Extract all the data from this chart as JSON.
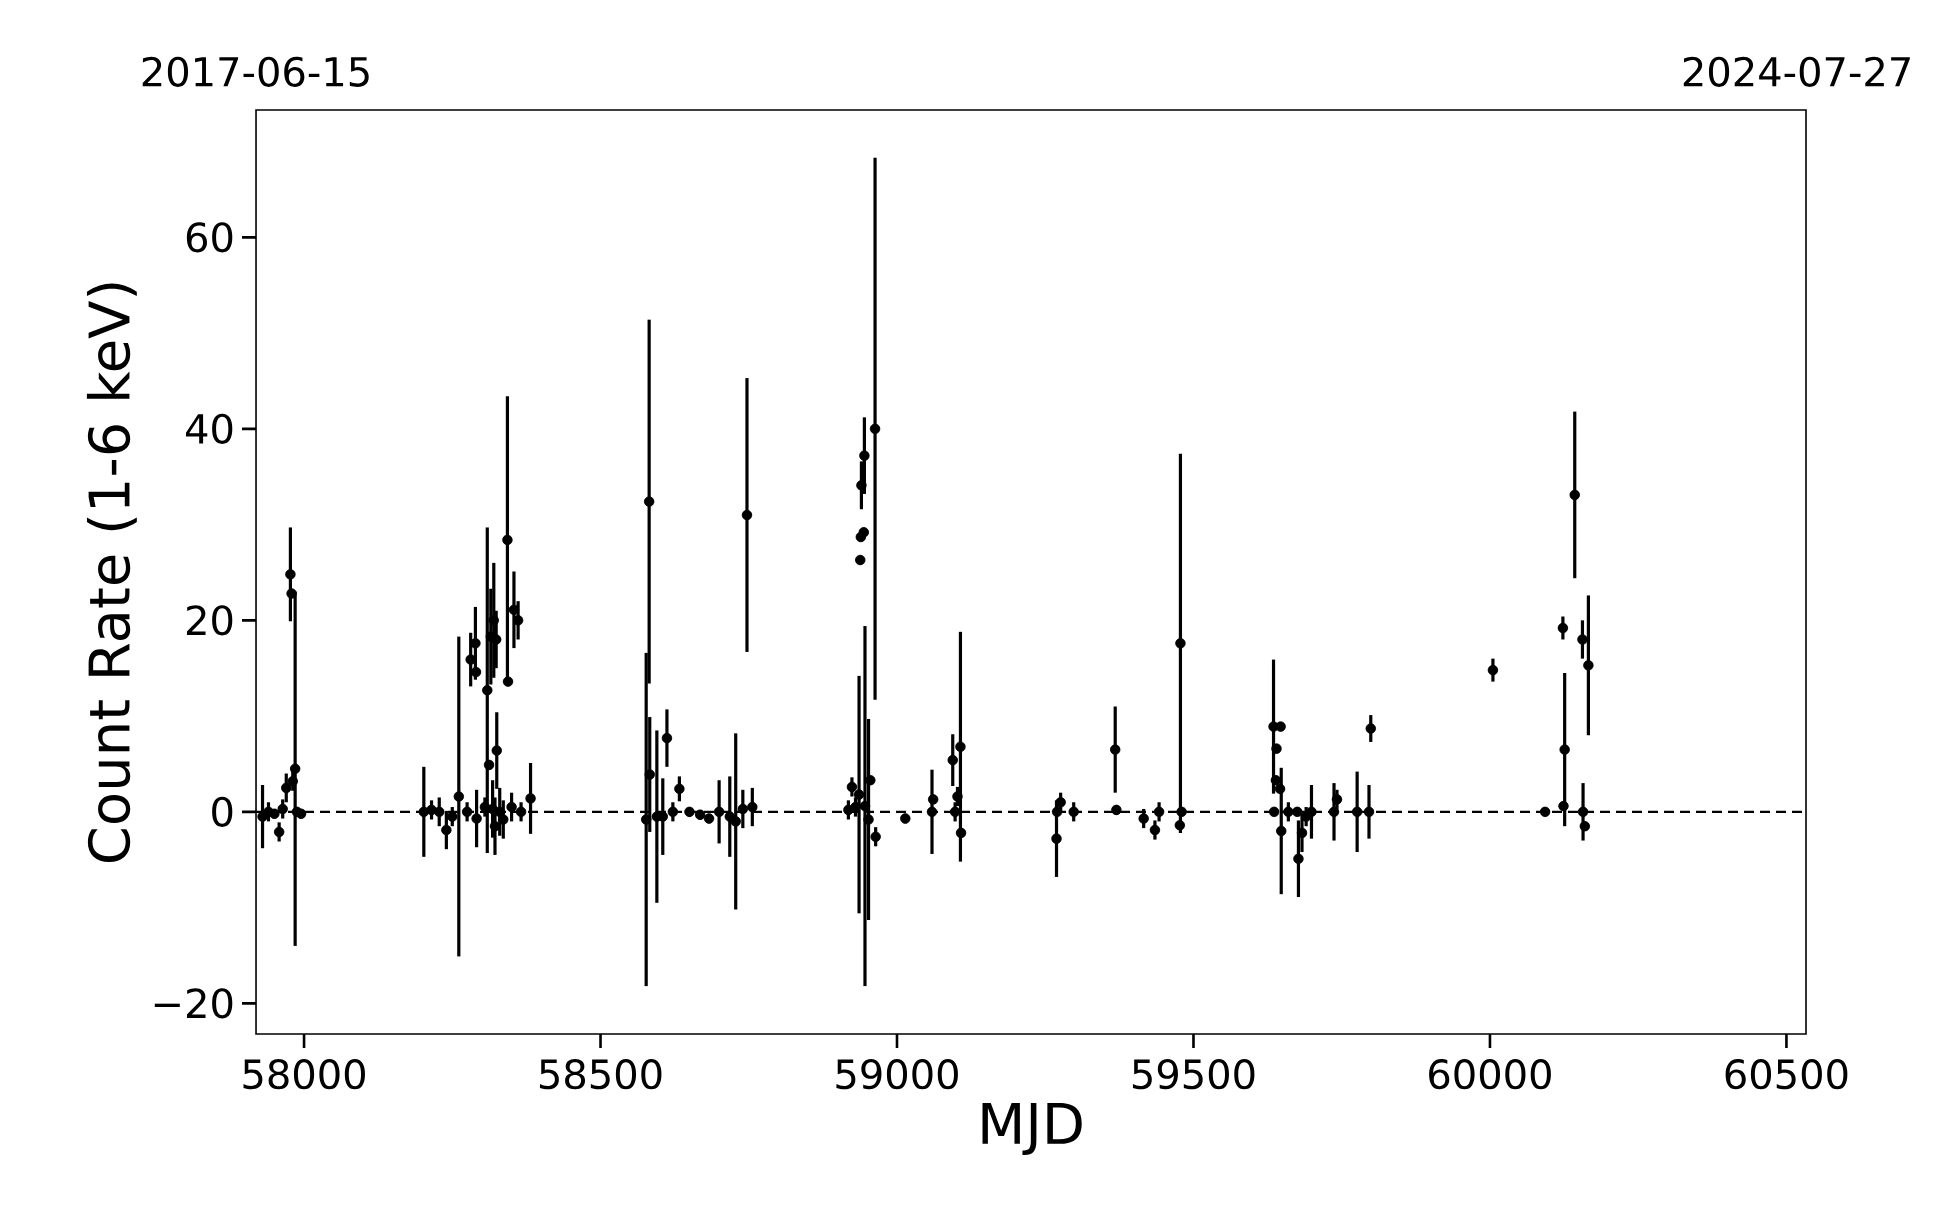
{
  "chart_data": {
    "type": "scatter",
    "xlabel": "MJD",
    "ylabel": "Count Rate (1-6 keV)",
    "xlim": [
      57919,
      60533
    ],
    "xticks": [
      58000,
      58500,
      59000,
      59500,
      60000,
      60500
    ],
    "ylim": [
      -23.2,
      73.3
    ],
    "yticks": [
      {
        "value": -20,
        "label": "−20"
      },
      0,
      20,
      40,
      60
    ],
    "x2lim": [
      "2017-06-15",
      "2024-08-11"
    ],
    "x2ticks": [
      "2017-06-15",
      "2024-07-27"
    ],
    "marker": "circle",
    "ref_lines": [
      {
        "axis": "y",
        "value": 0,
        "line_style": "dashed",
        "color": "#000000"
      }
    ],
    "series": [
      {
        "color": "#000000",
        "x": [
          57930,
          57940,
          57950,
          57958,
          57964,
          57970,
          57977,
          57979,
          57981,
          57985,
          57988,
          57995,
          58202,
          58215,
          58228,
          58240,
          58250,
          58261,
          58275,
          58281,
          58289,
          58290,
          58291,
          58305,
          58309,
          58312,
          58315,
          58318,
          58320,
          58322,
          58324,
          58325,
          58330,
          58336,
          58343,
          58344,
          58350,
          58354,
          58361,
          58366,
          58382,
          58577,
          58582,
          58583,
          58595,
          58605,
          58612,
          58622,
          58633,
          58650,
          58668,
          58683,
          58700,
          58718,
          58728,
          58740,
          58747,
          58756,
          58918,
          58924,
          58930,
          58936,
          58938,
          58939,
          58940,
          58944,
          58945,
          58946,
          58952,
          58955,
          58963,
          58964,
          59014,
          59059,
          59061,
          59094,
          59098,
          59102,
          59107,
          59108,
          59269,
          59270,
          59276,
          59298,
          59368,
          59370,
          59416,
          59435,
          59442,
          59477,
          59478,
          59480,
          59635,
          59636,
          59639,
          59640,
          59646,
          59647,
          59648,
          59660,
          59675,
          59677,
          59683,
          59690,
          59699,
          59737,
          59742,
          59776,
          59796,
          59799,
          60005,
          60093,
          60123,
          60124,
          60126,
          60143,
          60156,
          60157,
          60160,
          60166
        ],
        "values": [
          -0.5,
          0,
          -0.2,
          -2.1,
          0.3,
          2.5,
          24.8,
          22.8,
          3.2,
          4.5,
          0,
          -0.2,
          0,
          0.2,
          0,
          -1.9,
          -0.5,
          1.6,
          0,
          15.9,
          17.6,
          14.6,
          -0.7,
          0.5,
          12.7,
          4.9,
          18.3,
          0.3,
          20,
          -1.5,
          18,
          6.4,
          0,
          -0.8,
          28.4,
          13.6,
          0.5,
          21.1,
          20,
          0,
          1.4,
          -0.8,
          32.4,
          3.9,
          -0.5,
          -0.5,
          7.7,
          0,
          2.4,
          0,
          -0.3,
          -0.7,
          0,
          -0.5,
          -1,
          0.3,
          31.0,
          0.5,
          0.2,
          2.6,
          0.5,
          1.8,
          26.3,
          28.7,
          34.1,
          29.2,
          37.2,
          0.6,
          -0.8,
          3.3,
          40.0,
          -2.6,
          -0.7,
          0,
          1.3,
          5.4,
          0,
          1.6,
          6.8,
          -2.2,
          -2.8,
          0,
          1,
          0,
          6.5,
          0.2,
          -0.7,
          -1.9,
          0,
          -1.4,
          17.6,
          0,
          8.9,
          0,
          3.3,
          6.6,
          2.4,
          8.9,
          -2,
          0,
          0,
          -4.9,
          -2.2,
          -0.5,
          0,
          0,
          1.3,
          0,
          0,
          8.7,
          14.8,
          0,
          19.2,
          0.6,
          6.5,
          33.1,
          18,
          0,
          -1.5,
          15.3
        ],
        "errors": [
          3.3,
          1,
          0.5,
          1,
          1,
          1.5,
          4.9,
          null,
          1,
          18.5,
          null,
          0.5,
          4.7,
          1,
          1.5,
          2,
          1,
          16.7,
          1,
          2.8,
          3.8,
          null,
          3,
          1,
          17,
          null,
          5,
          3,
          6,
          3,
          3,
          4,
          2.5,
          2,
          15,
          null,
          1.5,
          4,
          2,
          1,
          3.7,
          17.4,
          19,
          6,
          9,
          4,
          3,
          1,
          1.3,
          0.5,
          0.5,
          0.5,
          3.3,
          4.2,
          9.2,
          2,
          14.3,
          2,
          1,
          1,
          1,
          12.4,
          null,
          null,
          2.5,
          null,
          4,
          18.8,
          10.5,
          null,
          28.3,
          1,
          0.5,
          4.4,
          null,
          2.7,
          1,
          1,
          12,
          null,
          4,
          null,
          1,
          1,
          4.5,
          0.5,
          1,
          1,
          1,
          null,
          19.8,
          null,
          7,
          null,
          null,
          null,
          null,
          null,
          6.6,
          1,
          null,
          4,
          2,
          1,
          2.8,
          3,
          1,
          4.2,
          2.8,
          1.4,
          1.2,
          0.3,
          1.2,
          null,
          8,
          8.7,
          2,
          3,
          null,
          7.3
        ]
      }
    ]
  }
}
